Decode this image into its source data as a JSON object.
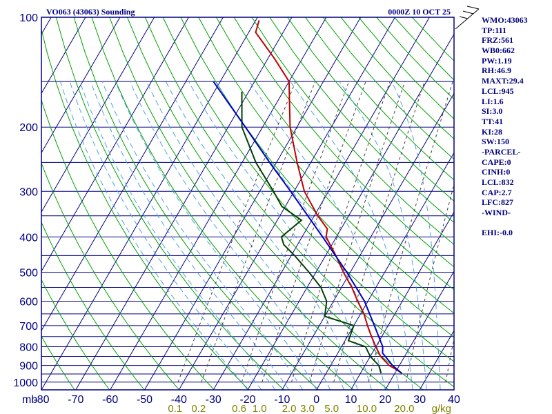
{
  "header": {
    "station_title": "VO063 (43063) Sounding",
    "time_label": "0000Z 10 OCT 25"
  },
  "stats": [
    "WMO:43063",
    "TP:111",
    "FRZ:561",
    "WB0:662",
    "PW:1.19",
    "RH:46.9",
    "MAXT:29.4",
    "LCL:945",
    "LI:1.6",
    "SI:3.0",
    "TT:41",
    "KI:28",
    "SW:150",
    "-PARCEL-",
    "CAPE:0",
    "CINH:0",
    "LCL:832",
    "CAP:2.7",
    "LFC:827",
    "-WIND-",
    "",
    "EHI:-0.0"
  ],
  "colors": {
    "frame": "#000080",
    "isobar": "#000080",
    "isotherm": "#000080",
    "dry_adiabat": "#00a000",
    "moist_adiabat": "#50a0e0",
    "mixing_ratio": "#404040",
    "temperature": "#c00000",
    "dewpoint": "#004000",
    "parcel": "#0000c0"
  },
  "chart_data": {
    "type": "skew-t",
    "pressure_unit_label": "mb",
    "pressure_levels": [
      100,
      200,
      300,
      400,
      500,
      600,
      700,
      800,
      900,
      1000
    ],
    "pressure_tick_labels": [
      "100",
      "200",
      "300",
      "400",
      "500",
      "600",
      "700",
      "800",
      "900",
      "1000"
    ],
    "temperature_ticks": [
      -80,
      -70,
      -60,
      -50,
      -40,
      -30,
      -20,
      -10,
      0,
      10,
      20,
      30,
      40
    ],
    "temperature_tick_labels": [
      "-80",
      "-70",
      "-60",
      "-50",
      "-40",
      "-30",
      "-20",
      "-10",
      "0",
      "10",
      "20",
      "30",
      "40"
    ],
    "mixing_ratio_labels": [
      "0.1",
      "0.2",
      "0.6",
      "1.0",
      "2.0",
      "3.0",
      "5.0",
      "10.0",
      "20.0"
    ],
    "mixing_ratio_unit": "g/kg",
    "ylim": [
      1000,
      100
    ],
    "series": [
      {
        "key": "temperature",
        "points": [
          [
            946,
            22
          ],
          [
            925,
            20
          ],
          [
            900,
            17
          ],
          [
            850,
            13
          ],
          [
            800,
            10
          ],
          [
            750,
            7
          ],
          [
            700,
            4
          ],
          [
            650,
            1
          ],
          [
            600,
            -3
          ],
          [
            550,
            -7
          ],
          [
            500,
            -12
          ],
          [
            450,
            -17
          ],
          [
            400,
            -23
          ],
          [
            380,
            -24
          ],
          [
            350,
            -29
          ],
          [
            300,
            -37
          ],
          [
            250,
            -44
          ],
          [
            200,
            -52
          ],
          [
            150,
            -60
          ],
          [
            130,
            -68
          ],
          [
            110,
            -78
          ],
          [
            102,
            -79
          ]
        ]
      },
      {
        "key": "dewpoint",
        "points": [
          [
            946,
            16
          ],
          [
            900,
            14
          ],
          [
            850,
            10
          ],
          [
            800,
            7
          ],
          [
            770,
            1
          ],
          [
            700,
            0
          ],
          [
            660,
            -10
          ],
          [
            600,
            -12
          ],
          [
            550,
            -16
          ],
          [
            500,
            -22
          ],
          [
            450,
            -29
          ],
          [
            420,
            -34
          ],
          [
            400,
            -36
          ],
          [
            360,
            -33
          ],
          [
            330,
            -41
          ],
          [
            300,
            -46
          ],
          [
            250,
            -56
          ],
          [
            200,
            -66
          ],
          [
            160,
            -72
          ]
        ]
      },
      {
        "key": "parcel",
        "points": [
          [
            946,
            22
          ],
          [
            900,
            18
          ],
          [
            832,
            13
          ],
          [
            800,
            12
          ],
          [
            700,
            6
          ],
          [
            600,
            -1
          ],
          [
            500,
            -11
          ],
          [
            400,
            -24
          ],
          [
            300,
            -41
          ],
          [
            250,
            -52
          ],
          [
            200,
            -65
          ],
          [
            150,
            -82
          ]
        ]
      }
    ]
  }
}
